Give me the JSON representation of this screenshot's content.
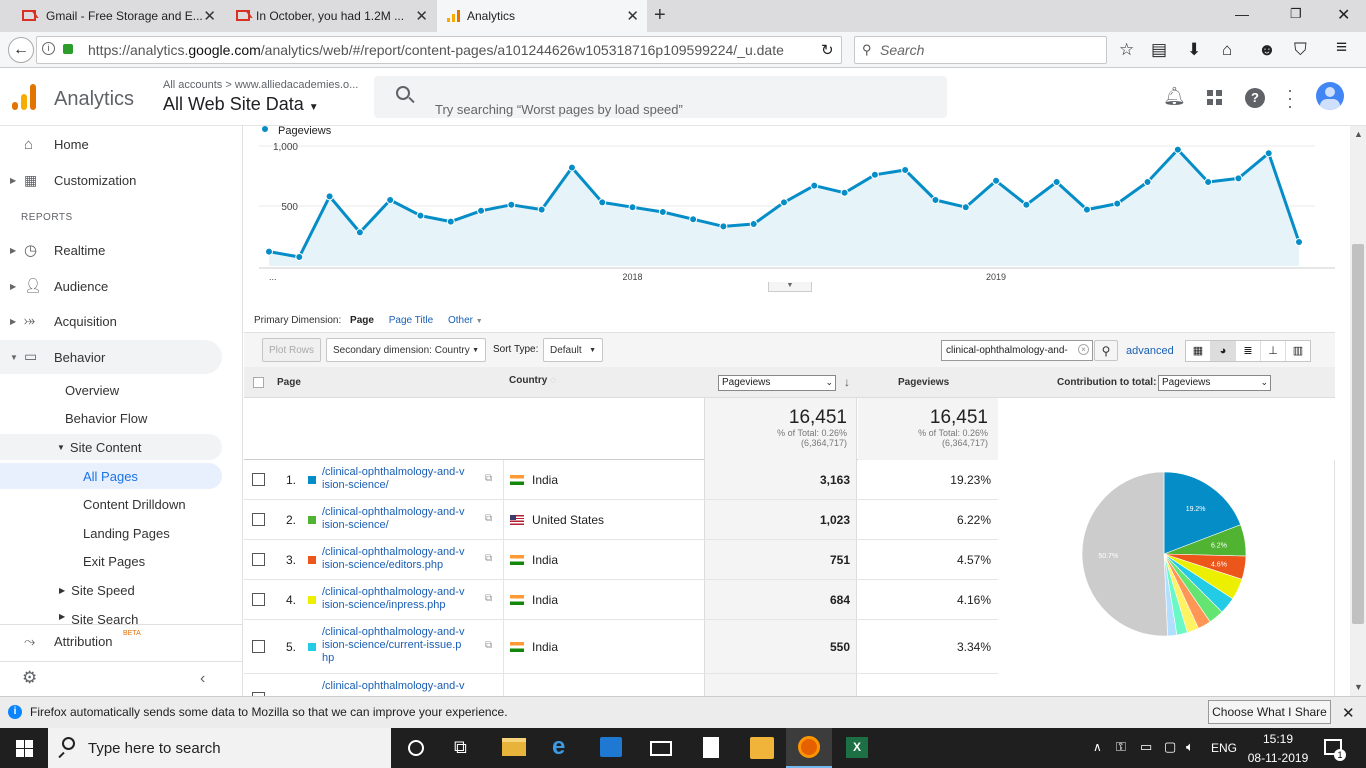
{
  "browser": {
    "tabs": [
      {
        "title": "Gmail - Free Storage and E..."
      },
      {
        "title": "In October, you had 1.2M ..."
      },
      {
        "title": "Analytics"
      }
    ],
    "url_prefix": "https://analytics.",
    "url_domain": "google.com",
    "url_rest": "/analytics/web/#/report/content-pages/a101244626w105318716p109599224/_u.date",
    "search_placeholder": "Search"
  },
  "ga_header": {
    "product": "Analytics",
    "breadcrumb": "All accounts > www.alliedacademies.o...",
    "property": "All Web Site Data",
    "search_placeholder": "Try searching “Worst pages by load speed”"
  },
  "sidebar": {
    "home": "Home",
    "customization": "Customization",
    "reports_header": "REPORTS",
    "realtime": "Realtime",
    "audience": "Audience",
    "acquisition": "Acquisition",
    "behavior": "Behavior",
    "overview": "Overview",
    "behavior_flow": "Behavior Flow",
    "site_content": "Site Content",
    "all_pages": "All Pages",
    "content_drilldown": "Content Drilldown",
    "landing_pages": "Landing Pages",
    "exit_pages": "Exit Pages",
    "site_speed": "Site Speed",
    "site_search": "Site Search",
    "attribution": "Attribution",
    "beta": "BETA"
  },
  "chart_data": {
    "type": "line",
    "series": [
      {
        "name": "Pageviews",
        "values": [
          120,
          75,
          580,
          280,
          550,
          420,
          370,
          460,
          510,
          470,
          820,
          530,
          490,
          450,
          390,
          330,
          350,
          530,
          670,
          610,
          760,
          800,
          550,
          490,
          710,
          510,
          700,
          470,
          520,
          700,
          970,
          700,
          730,
          940,
          200
        ]
      }
    ],
    "ytick_labels": [
      "1,000",
      "500"
    ],
    "ytick_values": [
      1000,
      500
    ],
    "xtick_labels": [
      "...",
      "2018",
      "2019"
    ],
    "xtick_index": [
      0,
      12,
      24
    ],
    "ylim": [
      0,
      1000
    ],
    "color": "#058dc7",
    "grid": true,
    "legend": "top-left"
  },
  "dimension_bar": {
    "label": "Primary Dimension:",
    "page": "Page",
    "page_title": "Page Title",
    "other": "Other"
  },
  "toolbar": {
    "plot_rows": "Plot Rows",
    "secondary_dimension": "Secondary dimension: Country",
    "sort_type_label": "Sort Type:",
    "sort_type_value": "Default",
    "filter_value": "clinical-ophthalmology-and-",
    "advanced": "advanced"
  },
  "table": {
    "col_page": "Page",
    "col_country": "Country",
    "metric_select": "Pageviews",
    "col_pageviews": "Pageviews",
    "contribution_label": "Contribution to total:",
    "contribution_select": "Pageviews",
    "total_1": "16,451",
    "total_1_pct": "% of Total: 0.26%",
    "total_1_base": "(6,364,717)",
    "total_2": "16,451",
    "total_2_pct": "% of Total: 0.26%",
    "total_2_base": "(6,364,717)",
    "rows": [
      {
        "idx": "1.",
        "color": "#058dc7",
        "page_l1": "/clinical-ophthalmology-and-v",
        "page_l2": "ision-science/",
        "page_l3": "",
        "country": "India",
        "pageviews": "3,163",
        "pct": "19.23%"
      },
      {
        "idx": "2.",
        "color": "#50b432",
        "page_l1": "/clinical-ophthalmology-and-v",
        "page_l2": "ision-science/",
        "page_l3": "",
        "country": "United States",
        "pageviews": "1,023",
        "pct": "6.22%"
      },
      {
        "idx": "3.",
        "color": "#ed561b",
        "page_l1": "/clinical-ophthalmology-and-v",
        "page_l2": "ision-science/editors.php",
        "page_l3": "",
        "country": "India",
        "pageviews": "751",
        "pct": "4.57%"
      },
      {
        "idx": "4.",
        "color": "#edef00",
        "page_l1": "/clinical-ophthalmology-and-v",
        "page_l2": "ision-science/inpress.php",
        "page_l3": "",
        "country": "India",
        "pageviews": "684",
        "pct": "4.16%"
      },
      {
        "idx": "5.",
        "color": "#24cbe5",
        "page_l1": "/clinical-ophthalmology-and-v",
        "page_l2": "ision-science/current-issue.p",
        "page_l3": "hp",
        "country": "India",
        "pageviews": "550",
        "pct": "3.34%"
      },
      {
        "idx": "",
        "color": "#64e572",
        "page_l1": "/clinical-ophthalmology-and-v",
        "page_l2": "",
        "page_l3": "",
        "country": "",
        "pageviews": "",
        "pct": ""
      }
    ]
  },
  "pie": {
    "slices": [
      {
        "value": 19.2,
        "color": "#058dc7",
        "label": "19.2%"
      },
      {
        "value": 6.2,
        "color": "#50b432",
        "label": "6.2%"
      },
      {
        "value": 4.6,
        "color": "#ed561b",
        "label": "4.6%"
      },
      {
        "value": 4.2,
        "color": "#edef00",
        "label": ""
      },
      {
        "value": 3.3,
        "color": "#24cbe5",
        "label": ""
      },
      {
        "value": 3.0,
        "color": "#64e572",
        "label": ""
      },
      {
        "value": 2.6,
        "color": "#ff9655",
        "label": ""
      },
      {
        "value": 2.3,
        "color": "#fff263",
        "label": ""
      },
      {
        "value": 2.1,
        "color": "#6af9c4",
        "label": ""
      },
      {
        "value": 1.8,
        "color": "#b2deff",
        "label": ""
      },
      {
        "value": 50.7,
        "color": "#cccccc",
        "label": "50.7%"
      }
    ]
  },
  "notification": {
    "text": "Firefox automatically sends some data to Mozilla so that we can improve your experience.",
    "button": "Choose What I Share"
  },
  "taskbar": {
    "search_placeholder": "Type here to search",
    "lang": "ENG",
    "time": "15:19",
    "date": "08-11-2019",
    "notif_count": "1"
  }
}
